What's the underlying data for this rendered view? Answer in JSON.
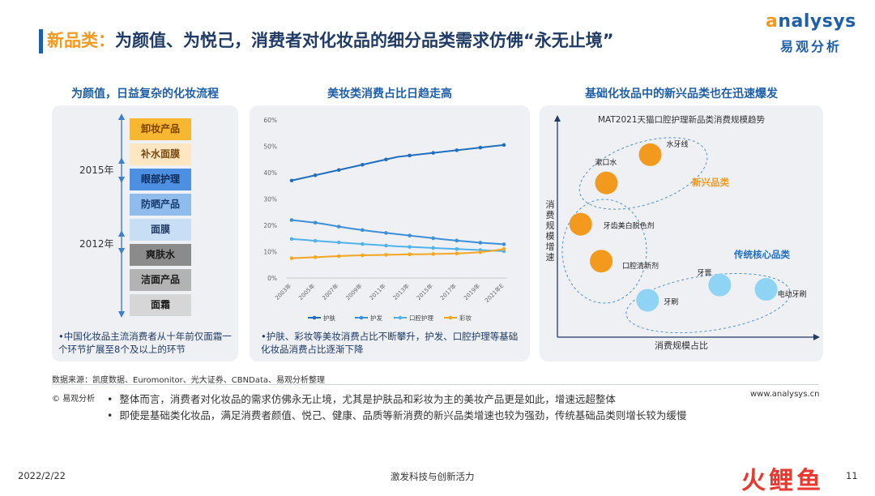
{
  "header": {
    "title_accent": "新品类：",
    "title_main": "为颜值、为悦己，消费者对化妆品的细分品类需求仿佛“永无止境”",
    "logo_en_first": "a",
    "logo_en_rest": "nalysys",
    "logo_cn": "易观分析"
  },
  "panel1": {
    "subtitle": "为颜值，日益复杂的化妆流程",
    "years": [
      "2015年",
      "2012年"
    ],
    "steps": [
      {
        "label": "卸妆产品",
        "color": "#f7b731",
        "text": "#7a3e00"
      },
      {
        "label": "补水面膜",
        "color": "#fde7c2",
        "text": "#7a4a10"
      },
      {
        "label": "眼部护理",
        "color": "#4d8fe0",
        "text": "#0d2c5a"
      },
      {
        "label": "防晒产品",
        "color": "#8fbcec",
        "text": "#153a6b"
      },
      {
        "label": "面膜",
        "color": "#c8def5",
        "text": "#1f3b66"
      },
      {
        "label": "爽肤水",
        "color": "#8b8b8b",
        "text": "#1a1a1a"
      },
      {
        "label": "洁面产品",
        "color": "#b3b3b3",
        "text": "#1a1a1a"
      },
      {
        "label": "面霜",
        "color": "#d6d6d6",
        "text": "#1a1a1a"
      }
    ],
    "note": "•中国化妆品主流消费者从十年前仅面霜一个环节扩展至8个及以上的环节"
  },
  "panel2": {
    "subtitle": "美妆类消费占比日趋走高",
    "note": "•护肤、彩妆等美妆消费占比不断攀升，护发、口腔护理等基础化妆品消费占比逐渐下降"
  },
  "panel3": {
    "subtitle": "基础化妆品中的新兴品类也在迅速爆发",
    "chart_title": "MAT2021天猫口腔护理新品类消费规模趋势",
    "y_label": "消费规模增速",
    "x_label": "消费规模占比",
    "group_new": "新兴品类",
    "group_core": "传统核心品类",
    "items": [
      {
        "label": "水牙线",
        "group": "new"
      },
      {
        "label": "漱口水",
        "group": "new"
      },
      {
        "label": "牙齿美白脱色剂",
        "group": "new"
      },
      {
        "label": "口腔清新剂",
        "group": "new"
      },
      {
        "label": "牙膏",
        "group": "core"
      },
      {
        "label": "牙刷",
        "group": "core"
      },
      {
        "label": "电动牙刷",
        "group": "core"
      }
    ]
  },
  "source": "数据来源：凯度数据、Euromonitor、光大证券、CBNData、易观分析整理",
  "copyright": "© 易观分析",
  "website": "www.analysys.cn",
  "bullets": [
    "整体而言，消费者对化妆品的需求仿佛永无止境，尤其是护肤品和彩妆为主的美妆产品更是如此，增速远超整体",
    "即使是基础类化妆品，满足消费者颜值、悦己、健康、品质等新消费的新兴品类增速也较为强劲，传统基础品类则增长较为缓慢"
  ],
  "footer": {
    "date": "2022/2/22",
    "center": "激发科技与创新活力",
    "page": "11",
    "brand": "火鲤鱼"
  },
  "colors": {
    "skin": "#1f6fc1",
    "hair": "#3c8fd8",
    "oral": "#4fb3ea",
    "makeup": "#f5a623",
    "orange_bubble": "#f39a1e",
    "blue_bubble": "#8fd3f5"
  },
  "chart_data": [
    {
      "type": "line",
      "title": "美妆类消费占比日趋走高",
      "x": [
        "2003年",
        "2004年",
        "2005年",
        "2006年",
        "2007年",
        "2008年",
        "2009年",
        "2010年",
        "2011年",
        "2012年",
        "2013年",
        "2014年",
        "2015年",
        "2016年",
        "2017年",
        "2018年",
        "2019年",
        "2020年",
        "2021年E"
      ],
      "x_tick_labels": [
        "2003年",
        "2005年",
        "2007年",
        "2009年",
        "2011年",
        "2013年",
        "2015年",
        "2017年",
        "2019年",
        "2021年E"
      ],
      "ylim": [
        0,
        60
      ],
      "y_ticks": [
        "0%",
        "10%",
        "20%",
        "30%",
        "40%",
        "50%",
        "60%"
      ],
      "series": [
        {
          "name": "护肤",
          "values": [
            37,
            38,
            39,
            40,
            41,
            42,
            43,
            44,
            45,
            46,
            46.5,
            47,
            47.5,
            48,
            48.5,
            49,
            49.5,
            50,
            50.5
          ]
        },
        {
          "name": "护发",
          "values": [
            22,
            21.5,
            21,
            20.3,
            19.5,
            18.8,
            18.2,
            17.6,
            17.1,
            16.6,
            16.1,
            15.6,
            15.1,
            14.6,
            14.2,
            13.8,
            13.4,
            13.1,
            12.8
          ]
        },
        {
          "name": "口腔护理",
          "values": [
            14.8,
            14.5,
            14.1,
            13.8,
            13.5,
            13.2,
            12.9,
            12.6,
            12.3,
            12.0,
            11.8,
            11.6,
            11.4,
            11.2,
            11.0,
            10.8,
            10.6,
            10.4,
            10.2
          ]
        },
        {
          "name": "彩妆",
          "values": [
            7.5,
            7.7,
            7.9,
            8.1,
            8.3,
            8.5,
            8.6,
            8.7,
            8.8,
            8.9,
            9.0,
            9.0,
            9.1,
            9.2,
            9.3,
            9.5,
            9.8,
            10.3,
            11
          ]
        }
      ],
      "legend": "bottom"
    },
    {
      "type": "scatter",
      "title": "MAT2021天猫口腔护理新品类消费规模趋势",
      "xlabel": "消费规模占比",
      "ylabel": "消费规模增速",
      "points": [
        {
          "label": "水牙线",
          "x": 0.36,
          "y": 0.84,
          "group": "新兴品类"
        },
        {
          "label": "漱口水",
          "x": 0.19,
          "y": 0.71,
          "group": "新兴品类"
        },
        {
          "label": "牙齿美白脱色剂",
          "x": 0.09,
          "y": 0.52,
          "group": "新兴品类"
        },
        {
          "label": "口腔清新剂",
          "x": 0.17,
          "y": 0.35,
          "group": "新兴品类"
        },
        {
          "label": "牙膏",
          "x": 0.63,
          "y": 0.24,
          "group": "传统核心品类"
        },
        {
          "label": "牙刷",
          "x": 0.35,
          "y": 0.17,
          "group": "传统核心品类"
        },
        {
          "label": "电动牙刷",
          "x": 0.81,
          "y": 0.22,
          "group": "传统核心品类"
        }
      ]
    }
  ]
}
